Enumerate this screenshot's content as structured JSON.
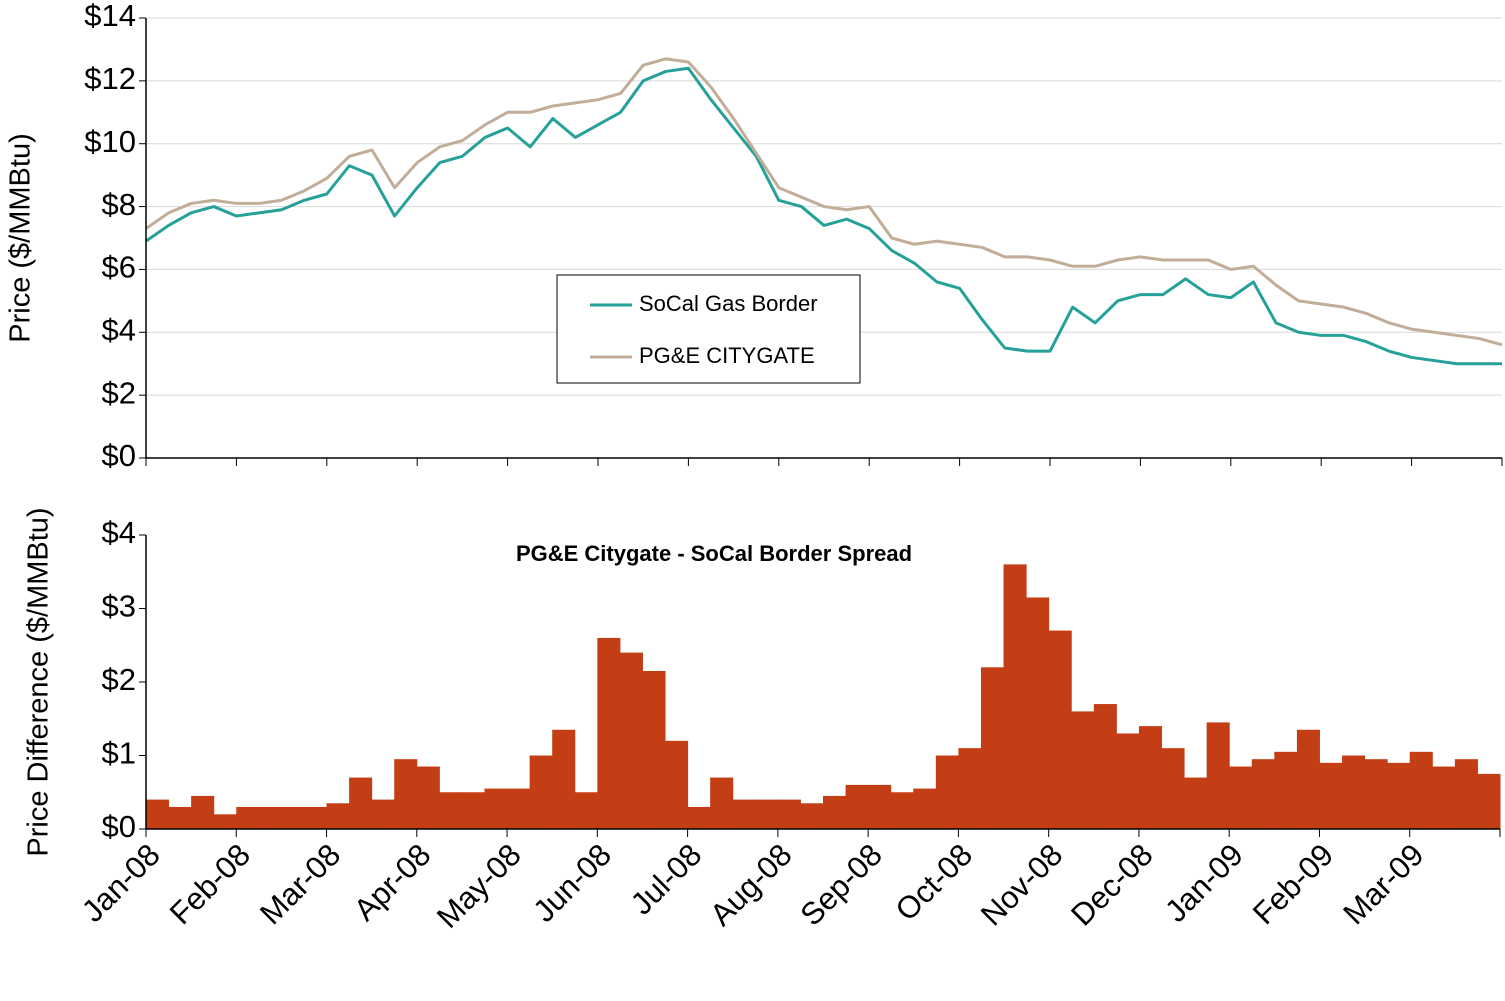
{
  "chart_data": [
    {
      "type": "line",
      "y_label": "Price ($/MMBtu)",
      "x": [
        0,
        0.25,
        0.5,
        0.75,
        1,
        1.25,
        1.5,
        1.75,
        2,
        2.25,
        2.5,
        2.75,
        3,
        3.25,
        3.5,
        3.75,
        4,
        4.25,
        4.5,
        4.75,
        5,
        5.25,
        5.5,
        5.75,
        6,
        6.25,
        6.5,
        6.75,
        7,
        7.25,
        7.5,
        7.75,
        8,
        8.25,
        8.5,
        8.75,
        9,
        9.25,
        9.5,
        9.75,
        10,
        10.25,
        10.5,
        10.75,
        11,
        11.25,
        11.5,
        11.75,
        12,
        12.25,
        12.5,
        12.75,
        13,
        13.25,
        13.5,
        13.75,
        14,
        14.25,
        14.5,
        14.75,
        15
      ],
      "xlim": [
        0,
        15
      ],
      "ylim": [
        0,
        14
      ],
      "yticks": [
        {
          "value": 0,
          "label": "$0"
        },
        {
          "value": 2,
          "label": "$2"
        },
        {
          "value": 4,
          "label": "$4"
        },
        {
          "value": 6,
          "label": "$6"
        },
        {
          "value": 8,
          "label": "$8"
        },
        {
          "value": 10,
          "label": "$10"
        },
        {
          "value": 12,
          "label": "$12"
        },
        {
          "value": 14,
          "label": "$14"
        }
      ],
      "grid": true,
      "legend": "center",
      "series": [
        {
          "name": "SoCal Gas Border",
          "color": "#26a199",
          "values": [
            6.9,
            7.4,
            7.8,
            8.0,
            7.7,
            7.8,
            7.9,
            8.2,
            8.4,
            9.3,
            9.0,
            7.7,
            8.6,
            9.4,
            9.6,
            10.2,
            10.5,
            9.9,
            10.8,
            10.2,
            10.6,
            11.0,
            12.0,
            12.3,
            12.4,
            11.4,
            10.5,
            9.6,
            8.2,
            8.0,
            7.4,
            7.6,
            7.3,
            6.6,
            6.2,
            5.6,
            5.4,
            4.4,
            3.5,
            3.4,
            3.4,
            4.8,
            4.3,
            5.0,
            5.2,
            5.2,
            5.7,
            5.2,
            5.1,
            5.6,
            4.3,
            4.0,
            3.9,
            3.9,
            3.7,
            3.4,
            3.2,
            3.1,
            3.0,
            3.0,
            3.0
          ]
        },
        {
          "name": "PG&E CITYGATE",
          "color": "#c2ad98",
          "values": [
            7.3,
            7.8,
            8.1,
            8.2,
            8.1,
            8.1,
            8.2,
            8.5,
            8.9,
            9.6,
            9.8,
            8.6,
            9.4,
            9.9,
            10.1,
            10.6,
            11.0,
            11.0,
            11.2,
            11.3,
            11.4,
            11.6,
            12.5,
            12.7,
            12.6,
            11.8,
            10.8,
            9.7,
            8.6,
            8.3,
            8.0,
            7.9,
            8.0,
            7.0,
            6.8,
            6.9,
            6.8,
            6.7,
            6.4,
            6.4,
            6.3,
            6.1,
            6.1,
            6.3,
            6.4,
            6.3,
            6.3,
            6.3,
            6.0,
            6.1,
            5.5,
            5.0,
            4.9,
            4.8,
            4.6,
            4.3,
            4.1,
            4.0,
            3.9,
            3.8,
            3.6
          ]
        }
      ]
    },
    {
      "type": "bar",
      "title": "PG&E Citygate - SoCal Border Spread",
      "y_label": "Price Difference ($/MMBtu)",
      "x": [
        0,
        0.25,
        0.5,
        0.75,
        1,
        1.25,
        1.5,
        1.75,
        2,
        2.25,
        2.5,
        2.75,
        3,
        3.25,
        3.5,
        3.75,
        4,
        4.25,
        4.5,
        4.75,
        5,
        5.25,
        5.5,
        5.75,
        6,
        6.25,
        6.5,
        6.75,
        7,
        7.25,
        7.5,
        7.75,
        8,
        8.25,
        8.5,
        8.75,
        9,
        9.25,
        9.5,
        9.75,
        10,
        10.25,
        10.5,
        10.75,
        11,
        11.25,
        11.5,
        11.75,
        12,
        12.25,
        12.5,
        12.75,
        13,
        13.25,
        13.5,
        13.75,
        14,
        14.25,
        14.5,
        14.75
      ],
      "values": [
        0.4,
        0.3,
        0.45,
        0.2,
        0.3,
        0.3,
        0.3,
        0.3,
        0.35,
        0.7,
        0.4,
        0.95,
        0.85,
        0.5,
        0.5,
        0.55,
        0.55,
        1.0,
        1.35,
        0.5,
        2.6,
        2.4,
        2.15,
        1.2,
        0.3,
        0.7,
        0.4,
        0.4,
        0.4,
        0.35,
        0.45,
        0.6,
        0.6,
        0.5,
        0.55,
        1.0,
        1.1,
        2.2,
        3.6,
        3.15,
        2.7,
        1.6,
        1.7,
        1.3,
        1.4,
        1.1,
        0.7,
        1.45,
        0.85,
        0.95,
        1.05,
        1.35,
        0.9,
        1.0,
        0.95,
        0.9,
        1.05,
        0.85,
        0.95,
        0.75
      ],
      "color": "#c33d15",
      "xlim": [
        0,
        15
      ],
      "xticks": [
        {
          "value": 0,
          "label": "Jan-08"
        },
        {
          "value": 1,
          "label": "Feb-08"
        },
        {
          "value": 2,
          "label": "Mar-08"
        },
        {
          "value": 3,
          "label": "Apr-08"
        },
        {
          "value": 4,
          "label": "May-08"
        },
        {
          "value": 5,
          "label": "Jun-08"
        },
        {
          "value": 6,
          "label": "Jul-08"
        },
        {
          "value": 7,
          "label": "Aug-08"
        },
        {
          "value": 8,
          "label": "Sep-08"
        },
        {
          "value": 9,
          "label": "Oct-08"
        },
        {
          "value": 10,
          "label": "Nov-08"
        },
        {
          "value": 11,
          "label": "Dec-08"
        },
        {
          "value": 12,
          "label": "Jan-09"
        },
        {
          "value": 13,
          "label": "Feb-09"
        },
        {
          "value": 14,
          "label": "Mar-09"
        }
      ],
      "ylim": [
        0,
        4
      ],
      "yticks": [
        {
          "value": 0,
          "label": "$0"
        },
        {
          "value": 1,
          "label": "$1"
        },
        {
          "value": 2,
          "label": "$2"
        },
        {
          "value": 3,
          "label": "$3"
        },
        {
          "value": 4,
          "label": "$4"
        }
      ],
      "grid": false
    }
  ]
}
